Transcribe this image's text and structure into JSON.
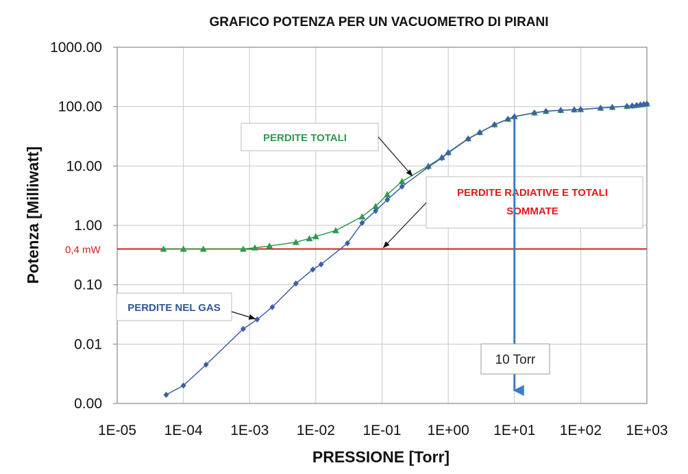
{
  "chart_data": {
    "type": "line",
    "title": "GRAFICO POTENZA PER UN VACUOMETRO DI PIRANI",
    "xlabel": "PRESSIONE [Torr]",
    "ylabel": "Potenza  [Milliwatt]",
    "x_scale": "log",
    "y_scale": "log",
    "xlim": [
      1e-05,
      1000
    ],
    "ylim": [
      0.001,
      1000
    ],
    "x_ticks": [
      1e-05,
      0.0001,
      0.001,
      0.01,
      0.1,
      1,
      10,
      100,
      1000
    ],
    "x_tick_labels": [
      "1E-05",
      "1E-04",
      "1E-03",
      "1E-02",
      "1E-01",
      "1E+00",
      "1E+01",
      "1E+02",
      "1E+03"
    ],
    "y_ticks": [
      0.001,
      0.01,
      0.1,
      1,
      10,
      100,
      1000
    ],
    "y_tick_labels": [
      "0.00",
      "0.01",
      "0.10",
      "1.00",
      "10.00",
      "100.00",
      "1000.00"
    ],
    "grid": true,
    "series": [
      {
        "name": "PERDITE TOTALI",
        "color": "#2e9a4e",
        "marker": "triangle",
        "x": [
          5e-05,
          0.0001,
          0.0002,
          0.0008,
          0.0012,
          0.002,
          0.005,
          0.008,
          0.01,
          0.02,
          0.05,
          0.08,
          0.12,
          0.2,
          0.5,
          0.8,
          1,
          2,
          3,
          5,
          8,
          10,
          20,
          30,
          50,
          80,
          100,
          200,
          300,
          500,
          600,
          700,
          800,
          900,
          1000
        ],
        "y": [
          0.4,
          0.4,
          0.4,
          0.4,
          0.42,
          0.45,
          0.52,
          0.6,
          0.65,
          0.82,
          1.4,
          2.1,
          3.3,
          5.5,
          10,
          14,
          17,
          29,
          37,
          50,
          62,
          68,
          79,
          84,
          87,
          89,
          90,
          95,
          98,
          102,
          104,
          106,
          108,
          110,
          112
        ]
      },
      {
        "name": "PERDITE NEL GAS",
        "color": "#3f5fa6",
        "marker": "diamond",
        "x": [
          5.5e-05,
          0.0001,
          0.00022,
          0.0008,
          0.0013,
          0.0022,
          0.005,
          0.009,
          0.012,
          0.03,
          0.05,
          0.08,
          0.12,
          0.2,
          0.5,
          0.8,
          1,
          2,
          3,
          5,
          8,
          10,
          20,
          30,
          50,
          80,
          100,
          200,
          300,
          500,
          600,
          700,
          800,
          900,
          1000
        ],
        "y": [
          0.0014,
          0.002,
          0.0045,
          0.018,
          0.026,
          0.042,
          0.105,
          0.18,
          0.22,
          0.5,
          1.1,
          1.75,
          2.7,
          4.5,
          9.6,
          13.6,
          16.6,
          28.6,
          36.6,
          49.6,
          61.6,
          67.6,
          78.6,
          83.6,
          86.6,
          88.6,
          89.6,
          94.6,
          97.6,
          101.6,
          103.6,
          105.6,
          107.6,
          109.6,
          111.6
        ]
      }
    ],
    "reference_lines": [
      {
        "label": "0,4 mW",
        "y": 0.4,
        "color": "#d9191c"
      }
    ],
    "annotations": [
      {
        "text": "PERDITE TOTALI",
        "color": "#2e9a4e",
        "arrow_to": [
          0.3,
          7.2
        ]
      },
      {
        "text_lines": [
          "PERDITE RADIATIVE E TOTALI",
          "SOMMATE"
        ],
        "color": "#e3161b",
        "arrow_to": [
          0.1,
          0.4
        ]
      },
      {
        "text": "PERDITE NEL GAS",
        "color": "#2f5597",
        "arrow_to": [
          0.0013,
          0.026
        ]
      },
      {
        "text": "10 Torr",
        "color": "#222222",
        "arrow_x": 10,
        "arrow_color": "#3a7dc9"
      }
    ]
  }
}
